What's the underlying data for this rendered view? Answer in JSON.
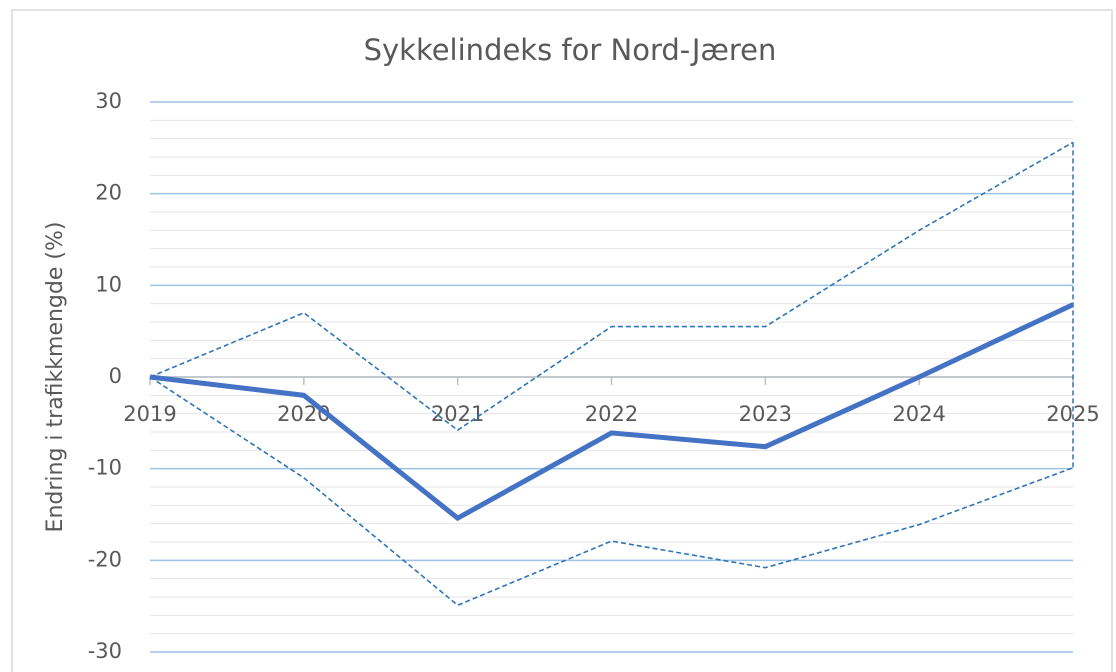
{
  "chart_data": {
    "type": "line",
    "title": "Sykkelindeks for Nord-Jæren",
    "ylabel": "Endring i trafikkmengde (%)",
    "categories": [
      "2019",
      "2020",
      "2021",
      "2022",
      "2023",
      "2024",
      "2025"
    ],
    "series": [
      {
        "color": "#4472c4",
        "style": "solid",
        "values": [
          0,
          -2,
          -15.4,
          -6.1,
          -7.6,
          0,
          7.9
        ]
      },
      {
        "color": "#2e75b6",
        "style": "dashed",
        "values": [
          0,
          7,
          -5.8,
          5.5,
          5.5,
          16,
          25.6
        ]
      },
      {
        "color": "#2e75b6",
        "style": "dashed",
        "values": [
          0,
          -11,
          -24.9,
          -17.9,
          -20.8,
          -16.1,
          -9.9
        ]
      }
    ],
    "ylim": [
      -30,
      30
    ],
    "yticks": [
      -30,
      -20,
      -10,
      0,
      10,
      20,
      30
    ],
    "minor_yticks": [
      -28,
      -26,
      -24,
      -22,
      -18,
      -16,
      -14,
      -12,
      -8,
      -6,
      -4,
      -2,
      2,
      4,
      6,
      8,
      12,
      14,
      16,
      18,
      22,
      24,
      26,
      28
    ],
    "grid": true
  }
}
